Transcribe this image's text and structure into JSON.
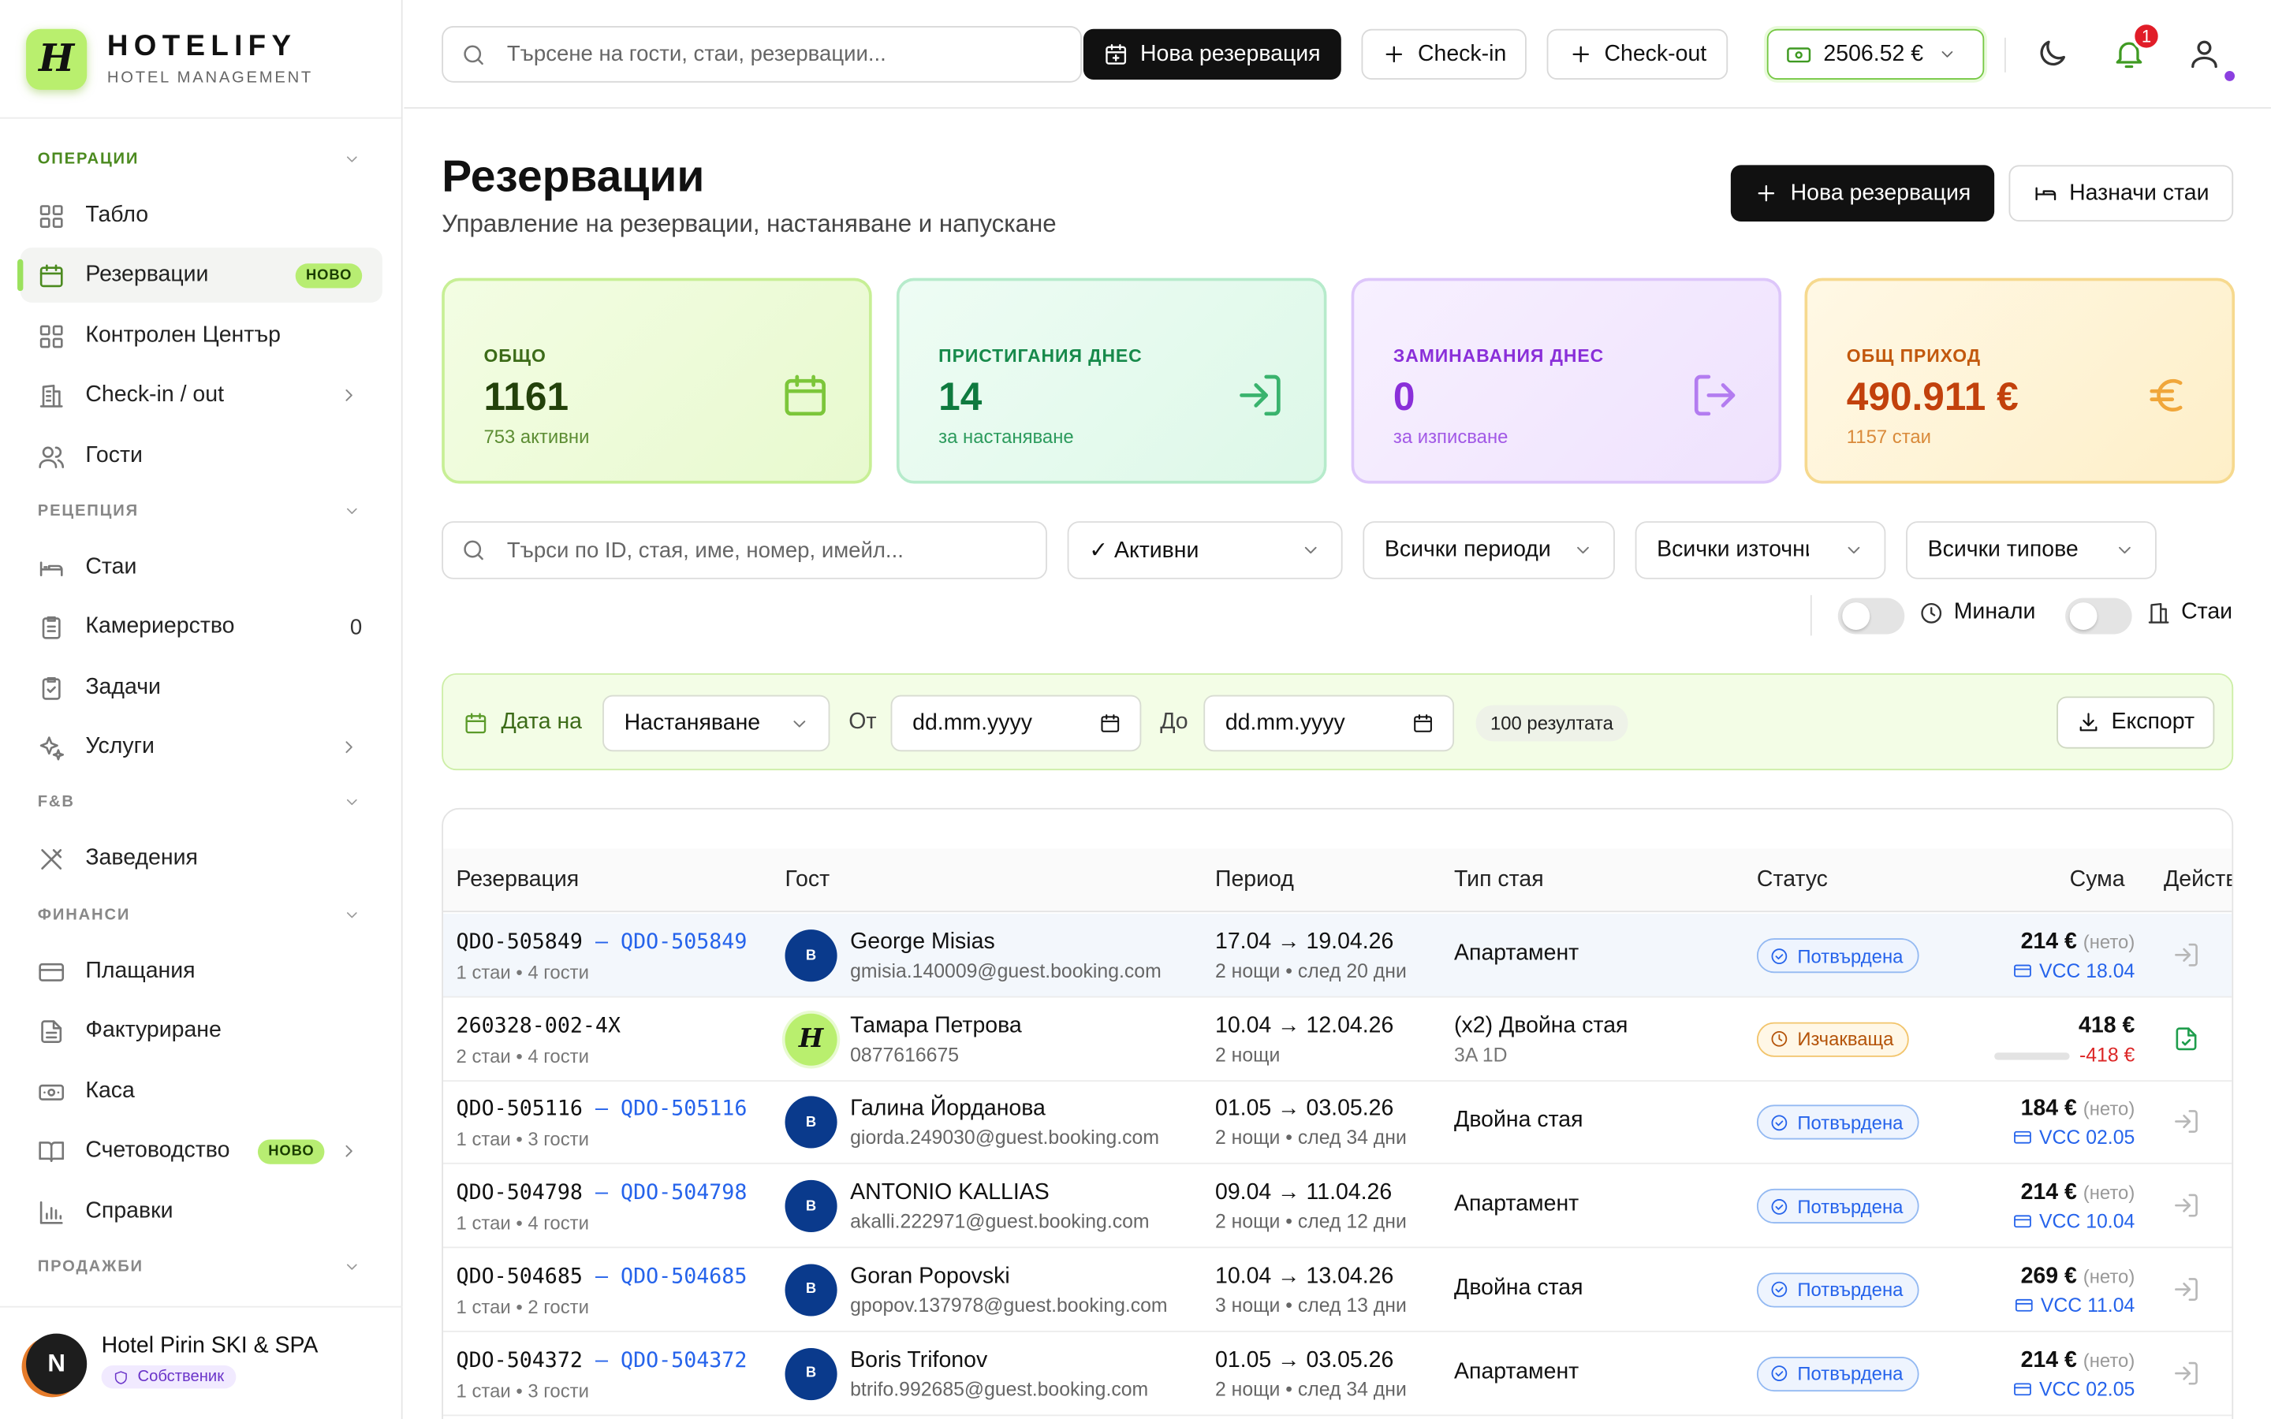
{
  "brand": {
    "name": "HOTELIFY",
    "subtitle": "HOTEL MANAGEMENT",
    "logo_glyph": "H"
  },
  "sidebar": {
    "sections": [
      {
        "label": "ОПЕРАЦИИ"
      },
      {
        "label": "РЕЦЕПЦИЯ"
      },
      {
        "label": "F&B"
      },
      {
        "label": "ФИНАНСИ"
      },
      {
        "label": "ПРОДАЖБИ"
      }
    ],
    "items": [
      {
        "label": "Табло",
        "icon": "grid-icon"
      },
      {
        "label": "Резервации",
        "icon": "calendar-icon",
        "badge": "НОВО",
        "active": true
      },
      {
        "label": "Контролен Център",
        "icon": "grid-icon"
      },
      {
        "label": "Check-in / out",
        "icon": "building-icon"
      },
      {
        "label": "Гости",
        "icon": "users-icon"
      },
      {
        "label": "Стаи",
        "icon": "bed-icon"
      },
      {
        "label": "Камериерство",
        "icon": "clipboard-icon",
        "count": "0"
      },
      {
        "label": "Задачи",
        "icon": "clipboard-check-icon"
      },
      {
        "label": "Услуги",
        "icon": "sparkles-icon"
      },
      {
        "label": "Заведения",
        "icon": "utensils-icon"
      },
      {
        "label": "Плащания",
        "icon": "credit-card-icon"
      },
      {
        "label": "Фактуриране",
        "icon": "file-text-icon"
      },
      {
        "label": "Каса",
        "icon": "banknote-icon"
      },
      {
        "label": "Счетоводство",
        "icon": "book-icon",
        "badge": "НОВО"
      },
      {
        "label": "Справки",
        "icon": "bar-chart-icon"
      }
    ]
  },
  "user": {
    "initial": "N",
    "hotel": "Hotel Pirin SKI & SPA",
    "role": "Собственик"
  },
  "topbar": {
    "search_placeholder": "Търсене на гости, стаи, резервации...",
    "new_reservation": "Нова резервация",
    "checkin": "Check-in",
    "checkout": "Check-out",
    "cash_balance": "2506.52 €",
    "notifications_count": "1"
  },
  "page": {
    "title": "Резервации",
    "subtitle": "Управление на резервации, настаняване и напускане",
    "new_reservation": "Нова резервация",
    "assign_rooms": "Назначи стаи"
  },
  "kpis": [
    {
      "label": "ОБЩО",
      "value": "1161",
      "sub": "753 активни",
      "icon": "calendar-icon"
    },
    {
      "label": "ПРИСТИГАНИЯ ДНЕС",
      "value": "14",
      "sub": "за настаняване",
      "icon": "log-in-icon"
    },
    {
      "label": "ЗАМИНАВАНИЯ ДНЕС",
      "value": "0",
      "sub": "за изписване",
      "icon": "log-out-icon"
    },
    {
      "label": "ОБЩ ПРИХОД",
      "value": "490.911 €",
      "sub": "1157 стаи",
      "icon": "euro-icon"
    }
  ],
  "filters": {
    "search_placeholder": "Търси по ID, стая, име, номер, имейл...",
    "status": "✓ Активни",
    "period": "Всички периоди",
    "source": "Всички източници",
    "type": "Всички типове",
    "past_label": "Минали",
    "rooms_label": "Стаи"
  },
  "datebar": {
    "label": "Дата на",
    "date_type": "Настаняване",
    "from_label": "От",
    "from_placeholder": "dd.mm.yyyy",
    "to_label": "До",
    "to_placeholder": "dd.mm.yyyy",
    "results": "100 резултата",
    "export": "Експорт"
  },
  "table": {
    "columns": [
      "Резервация",
      "Гост",
      "Период",
      "Тип стая",
      "Статус",
      "Сума",
      "Действия"
    ],
    "rows": [
      {
        "id": "QDO-505849",
        "link": "– QDO-505849",
        "sub": "1 стаи • 4 гости",
        "avatar": "B",
        "guest": "George Misias",
        "contact": "gmisia.140009@guest.booking.com",
        "period": "17.04 → 19.04.26",
        "nights": "2 нощи • след 20 дни",
        "room": "Апартамент",
        "room_sub": "",
        "status": "Потвърдена",
        "status_kind": "ok",
        "amount": "214 €",
        "net": "(нето)",
        "vcc": "VCC 18.04",
        "neg": "",
        "action_icon": "log-in-icon"
      },
      {
        "id": "260328-002-4X",
        "link": "",
        "sub": "2 стаи • 4 гости",
        "avatar": "H",
        "guest": "Тамара Петрова",
        "contact": "0877616675",
        "period": "10.04 → 12.04.26",
        "nights": "2 нощи",
        "room": "(x2) Двойна стая",
        "room_sub": "3A 1D",
        "status": "Изчакваща",
        "status_kind": "wait",
        "amount": "418 €",
        "net": "",
        "vcc": "",
        "neg": "-418 €",
        "action_icon": "file-check-icon"
      },
      {
        "id": "QDO-505116",
        "link": "– QDO-505116",
        "sub": "1 стаи • 3 гости",
        "avatar": "B",
        "guest": "Галина Йорданова",
        "contact": "giorda.249030@guest.booking.com",
        "period": "01.05 → 03.05.26",
        "nights": "2 нощи • след 34 дни",
        "room": "Двойна стая",
        "room_sub": "",
        "status": "Потвърдена",
        "status_kind": "ok",
        "amount": "184 €",
        "net": "(нето)",
        "vcc": "VCC 02.05",
        "neg": "",
        "action_icon": "log-in-icon"
      },
      {
        "id": "QDO-504798",
        "link": "– QDO-504798",
        "sub": "1 стаи • 4 гости",
        "avatar": "B",
        "guest": "ANTONIO KALLIAS",
        "contact": "akalli.222971@guest.booking.com",
        "period": "09.04 → 11.04.26",
        "nights": "2 нощи • след 12 дни",
        "room": "Апартамент",
        "room_sub": "",
        "status": "Потвърдена",
        "status_kind": "ok",
        "amount": "214 €",
        "net": "(нето)",
        "vcc": "VCC 10.04",
        "neg": "",
        "action_icon": "log-in-icon"
      },
      {
        "id": "QDO-504685",
        "link": "– QDO-504685",
        "sub": "1 стаи • 2 гости",
        "avatar": "B",
        "guest": "Goran Popovski",
        "contact": "gpopov.137978@guest.booking.com",
        "period": "10.04 → 13.04.26",
        "nights": "3 нощи • след 13 дни",
        "room": "Двойна стая",
        "room_sub": "",
        "status": "Потвърдена",
        "status_kind": "ok",
        "amount": "269 €",
        "net": "(нето)",
        "vcc": "VCC 11.04",
        "neg": "",
        "action_icon": "log-in-icon"
      },
      {
        "id": "QDO-504372",
        "link": "– QDO-504372",
        "sub": "1 стаи • 3 гости",
        "avatar": "B",
        "guest": "Boris Trifonov",
        "contact": "btrifo.992685@guest.booking.com",
        "period": "01.05 → 03.05.26",
        "nights": "2 нощи • след 34 дни",
        "room": "Апартамент",
        "room_sub": "",
        "status": "Потвърдена",
        "status_kind": "ok",
        "amount": "214 €",
        "net": "(нето)",
        "vcc": "VCC 02.05",
        "neg": "",
        "action_icon": "log-in-icon"
      }
    ]
  },
  "colors": {
    "accent": "#b9ef6e",
    "link": "#2563eb",
    "danger": "#dc2626",
    "confirmed": "#2563eb",
    "pending": "#b45309"
  }
}
